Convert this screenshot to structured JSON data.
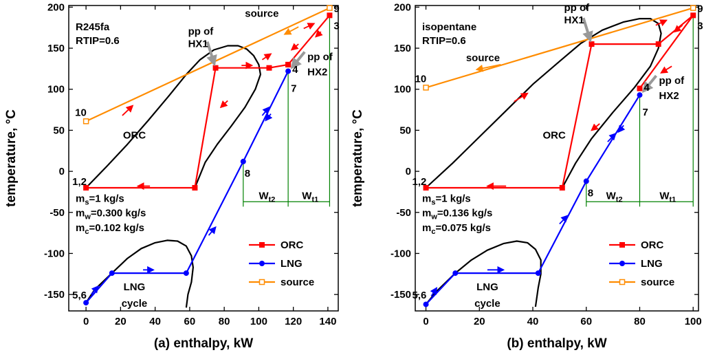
{
  "chart_data": [
    {
      "type": "line",
      "xlabel": "(a) enthalpy, kW",
      "ylabel": "temperature, °C",
      "xlim": [
        -10,
        146
      ],
      "ylim": [
        -170,
        202
      ],
      "xticks": [
        0,
        20,
        40,
        60,
        80,
        100,
        120,
        140
      ],
      "yticks": [
        -150,
        -100,
        -50,
        0,
        50,
        100,
        150,
        200
      ],
      "fluid": "R245fa",
      "rtip": "RTIP=0.6",
      "ms": "=1 kg/s",
      "mw": "=0.300 kg/s",
      "mc": "=0.102 kg/s",
      "series": [
        {
          "name": "ORC",
          "color": "#ff0000",
          "marker": "square",
          "points": [
            [
              0,
              -20
            ],
            [
              63,
              -20
            ],
            [
              75,
              126
            ],
            [
              106,
              126
            ],
            [
              117,
              130
            ],
            [
              141,
              190
            ],
            [
              117,
              130
            ]
          ]
        },
        {
          "name": "LNG",
          "color": "#0000ff",
          "marker": "circle",
          "points": [
            [
              0,
              -160
            ],
            [
              15,
              -124
            ],
            [
              58,
              -124
            ],
            [
              91,
              12
            ],
            [
              117,
              122
            ]
          ]
        },
        {
          "name": "source",
          "color": "#ff8c00",
          "marker": "square-open",
          "points": [
            [
              0,
              61
            ],
            [
              141,
              199
            ]
          ]
        }
      ],
      "dome_orc": [
        [
          0,
          -20
        ],
        [
          12,
          6
        ],
        [
          24,
          33
        ],
        [
          36,
          62
        ],
        [
          48,
          92
        ],
        [
          58,
          118
        ],
        [
          66,
          136
        ],
        [
          74,
          148
        ],
        [
          82,
          153
        ],
        [
          88,
          153
        ],
        [
          93,
          149
        ],
        [
          97,
          141
        ],
        [
          100,
          130
        ],
        [
          101,
          118
        ],
        [
          98,
          100
        ],
        [
          92,
          78
        ],
        [
          84,
          55
        ],
        [
          76,
          33
        ],
        [
          69,
          11
        ],
        [
          63,
          -20
        ]
      ],
      "dome_lng": [
        [
          0,
          -160
        ],
        [
          5,
          -144
        ],
        [
          15,
          -124
        ],
        [
          24,
          -106
        ],
        [
          32,
          -94
        ],
        [
          40,
          -87
        ],
        [
          47,
          -84
        ],
        [
          53,
          -85
        ],
        [
          58,
          -91
        ],
        [
          61,
          -103
        ],
        [
          62,
          -117
        ],
        [
          61,
          -135
        ],
        [
          59,
          -150
        ],
        [
          58,
          -166
        ]
      ],
      "wt_lines": {
        "x8": 91,
        "x4": 117,
        "x3": 141,
        "y_low": 12,
        "y_mid": 122,
        "y_high": 190,
        "y_arrow": -37,
        "y_bottom": -43
      },
      "labels": {
        "p9": "9",
        "p3": "3",
        "p4": "4",
        "p7": "7",
        "p8": "8",
        "p10": "10",
        "p12": "1,2",
        "p56": "5,6",
        "source": "source",
        "orc": "ORC",
        "lng": "LNG",
        "cycle": "cycle",
        "pp1a": "pp of",
        "pp1b": "HX1",
        "pp2a": "pp of",
        "pp2b": "HX2",
        "wt2": "W",
        "wt2sub": "t2",
        "wt1": "W",
        "wt1sub": "t1",
        "ms_pre": "m",
        "ms_sub": "s",
        "mw_pre": "m",
        "mw_sub": "w",
        "mc_pre": "m",
        "mc_sub": "c"
      },
      "pp_hx1": [
        75,
        126
      ],
      "pp_hx2": [
        117,
        122
      ],
      "flow_arrows": [
        {
          "color": "#ff0000",
          "from": [
            37,
            -18
          ],
          "to": [
            30,
            -18
          ]
        },
        {
          "color": "#ff0000",
          "from": [
            21,
            68
          ],
          "to": [
            27,
            80
          ]
        },
        {
          "color": "#ff0000",
          "from": [
            90,
            129
          ],
          "to": [
            96,
            129
          ]
        },
        {
          "color": "#ff0000",
          "from": [
            82,
            86
          ],
          "to": [
            78,
            78
          ]
        },
        {
          "color": "#ff0000",
          "from": [
            102,
            136
          ],
          "to": [
            107,
            143
          ]
        },
        {
          "color": "#ff0000",
          "from": [
            123,
            155
          ],
          "to": [
            119,
            148
          ]
        },
        {
          "color": "#ff0000",
          "from": [
            126,
            174
          ],
          "to": [
            132,
            180
          ]
        },
        {
          "color": "#ff0000",
          "from": [
            136,
            170
          ],
          "to": [
            133,
            164
          ]
        },
        {
          "color": "#0000ff",
          "from": [
            33,
            -120
          ],
          "to": [
            39,
            -120
          ]
        },
        {
          "color": "#0000ff",
          "from": [
            71,
            -78
          ],
          "to": [
            75,
            -68
          ]
        },
        {
          "color": "#0000ff",
          "from": [
            102,
            68
          ],
          "to": [
            106,
            78
          ]
        },
        {
          "color": "#0000ff",
          "from": [
            107,
            70
          ],
          "to": [
            104,
            62
          ]
        },
        {
          "color": "#0000ff",
          "from": [
            3,
            -150
          ],
          "to": [
            7,
            -140
          ]
        },
        {
          "color": "#ff8c00",
          "from": [
            123,
            176
          ],
          "to": [
            115,
            167
          ]
        }
      ]
    },
    {
      "type": "line",
      "xlabel": "(b) enthalpy, kW",
      "ylabel": "temperature, °C",
      "xlim": [
        -4,
        102
      ],
      "ylim": [
        -170,
        202
      ],
      "xticks": [
        0,
        20,
        40,
        60,
        80,
        100
      ],
      "yticks": [
        -150,
        -100,
        -50,
        0,
        50,
        100,
        150,
        200
      ],
      "fluid": "isopentane",
      "rtip": "RTIP=0.6",
      "ms": "=1 kg/s",
      "mw": "=0.136 kg/s",
      "mc": "=0.075 kg/s",
      "series": [
        {
          "name": "ORC",
          "color": "#ff0000",
          "marker": "square",
          "points": [
            [
              0,
              -20
            ],
            [
              51,
              -20
            ],
            [
              62,
              155
            ],
            [
              87,
              155
            ],
            [
              100,
              190
            ],
            [
              80,
              101
            ]
          ]
        },
        {
          "name": "LNG",
          "color": "#0000ff",
          "marker": "circle",
          "points": [
            [
              0,
              -162
            ],
            [
              11,
              -124
            ],
            [
              42,
              -124
            ],
            [
              60,
              -12
            ],
            [
              80,
              93
            ]
          ]
        },
        {
          "name": "source",
          "color": "#ff8c00",
          "marker": "square-open",
          "points": [
            [
              0,
              102
            ],
            [
              100,
              199
            ]
          ]
        }
      ],
      "dome_orc": [
        [
          0,
          -20
        ],
        [
          10,
          10
        ],
        [
          20,
          42
        ],
        [
          30,
          74
        ],
        [
          40,
          106
        ],
        [
          50,
          134
        ],
        [
          58,
          156
        ],
        [
          66,
          172
        ],
        [
          74,
          182
        ],
        [
          80,
          186
        ],
        [
          84,
          186
        ],
        [
          87,
          180
        ],
        [
          88,
          168
        ],
        [
          87,
          150
        ],
        [
          84,
          128
        ],
        [
          78,
          102
        ],
        [
          70,
          72
        ],
        [
          62,
          40
        ],
        [
          56,
          10
        ],
        [
          51,
          -20
        ]
      ],
      "dome_lng": [
        [
          0,
          -162
        ],
        [
          4,
          -146
        ],
        [
          11,
          -124
        ],
        [
          17,
          -108
        ],
        [
          23,
          -96
        ],
        [
          29,
          -88
        ],
        [
          34,
          -85
        ],
        [
          38,
          -87
        ],
        [
          41,
          -95
        ],
        [
          43,
          -108
        ],
        [
          43,
          -125
        ],
        [
          42,
          -142
        ],
        [
          41,
          -165
        ]
      ],
      "wt_lines": {
        "x8": 60,
        "x4": 80,
        "x3": 100,
        "y_low": -12,
        "y_mid": 93,
        "y_high": 190,
        "y_arrow": -37,
        "y_bottom": -43
      },
      "labels": {
        "p9": "9",
        "p3": "3",
        "p4": "4",
        "p7": "7",
        "p8": "8",
        "p10": "10",
        "p12": "1,2",
        "p56": "5,6",
        "source": "source",
        "orc": "ORC",
        "lng": "LNG",
        "cycle": "cycle",
        "pp1a": "pp of",
        "pp1b": "HX1",
        "pp2a": "pp of",
        "pp2b": "HX2",
        "wt2": "W",
        "wt2sub": "t2",
        "wt1": "W",
        "wt1sub": "t1",
        "ms_pre": "m",
        "ms_sub": "s",
        "mw_pre": "m",
        "mw_sub": "w",
        "mc_pre": "m",
        "mc_sub": "c"
      },
      "pp_hx1": [
        62,
        155
      ],
      "pp_hx2": [
        80,
        93
      ],
      "flow_arrows": [
        {
          "color": "#ff0000",
          "from": [
            30,
            -18
          ],
          "to": [
            23,
            -18
          ]
        },
        {
          "color": "#ff0000",
          "from": [
            33,
            85
          ],
          "to": [
            38,
            95
          ]
        },
        {
          "color": "#ff0000",
          "from": [
            65,
            58
          ],
          "to": [
            62,
            50
          ]
        },
        {
          "color": "#ff0000",
          "from": [
            86,
            178
          ],
          "to": [
            90,
            184
          ]
        },
        {
          "color": "#ff0000",
          "from": [
            96,
            178
          ],
          "to": [
            93,
            170
          ]
        },
        {
          "color": "#ff0000",
          "from": [
            92,
            128
          ],
          "to": [
            88,
            120
          ]
        },
        {
          "color": "#0000ff",
          "from": [
            23,
            -120
          ],
          "to": [
            29,
            -120
          ]
        },
        {
          "color": "#0000ff",
          "from": [
            50,
            -64
          ],
          "to": [
            53,
            -54
          ]
        },
        {
          "color": "#0000ff",
          "from": [
            68,
            36
          ],
          "to": [
            71,
            46
          ]
        },
        {
          "color": "#0000ff",
          "from": [
            74,
            56
          ],
          "to": [
            72,
            48
          ]
        },
        {
          "color": "#0000ff",
          "from": [
            2,
            -152
          ],
          "to": [
            4,
            -142
          ]
        },
        {
          "color": "#ff8c00",
          "from": [
            28,
            130
          ],
          "to": [
            19,
            124
          ]
        }
      ]
    }
  ],
  "legend": {
    "orc": "ORC",
    "lng": "LNG",
    "source": "source"
  }
}
